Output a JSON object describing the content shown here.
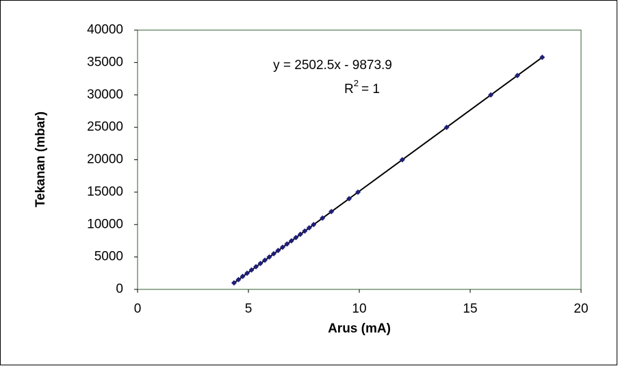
{
  "chart_data": {
    "type": "scatter",
    "xlabel": "Arus (mA)",
    "ylabel": "Tekanan (mbar)",
    "equation": "y = 2502.5x - 9873.9",
    "r_squared": {
      "base": "R",
      "sup": "2",
      "rest": "= 1"
    },
    "series": [
      {
        "color": "#1f1f7a",
        "x": [
          4.35,
          4.55,
          4.74,
          4.94,
          5.14,
          5.34,
          5.54,
          5.74,
          5.94,
          6.14,
          6.34,
          6.54,
          6.74,
          6.94,
          7.14,
          7.34,
          7.54,
          7.74,
          7.94,
          8.34,
          8.74,
          9.54,
          9.94,
          11.94,
          13.94,
          15.93,
          17.13,
          18.25
        ],
        "values": [
          1000,
          1500,
          2000,
          2500,
          3000,
          3500,
          4000,
          4500,
          5000,
          5500,
          6000,
          6500,
          7000,
          7500,
          8000,
          8500,
          9000,
          9500,
          10000,
          11000,
          12000,
          14000,
          15000,
          20000,
          25000,
          30000,
          33000,
          35800
        ]
      }
    ],
    "xlim": [
      0,
      20
    ],
    "xticks": [
      0,
      5,
      10,
      15,
      20
    ],
    "ylim": [
      0,
      40000
    ],
    "yticks": [
      0,
      5000,
      10000,
      15000,
      20000,
      25000,
      30000,
      35000,
      40000
    ],
    "trendline_color": "#000000"
  }
}
